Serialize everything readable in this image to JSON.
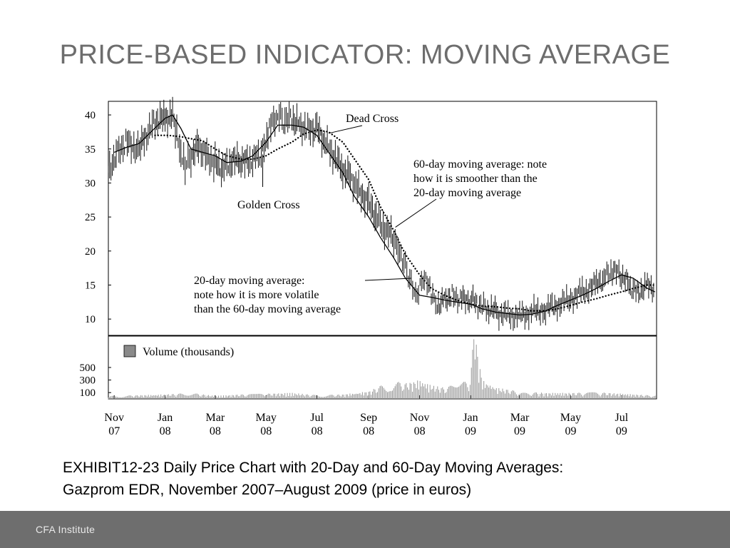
{
  "slide": {
    "title": "PRICE-BASED INDICATOR: MOVING AVERAGE",
    "caption_line1": "EXHIBIT12-23 Daily Price Chart with 20-Day and 60-Day Moving Averages:",
    "caption_line2": "Gazprom EDR, November 2007–August 2009 (price in euros)",
    "footer_brand": "CFA Institute"
  },
  "chart_data": {
    "type": "line",
    "x_ticks": [
      {
        "month": "Nov",
        "year": "07",
        "date": "2007-11"
      },
      {
        "month": "Jan",
        "year": "08",
        "date": "2008-01"
      },
      {
        "month": "Mar",
        "year": "08",
        "date": "2008-03"
      },
      {
        "month": "May",
        "year": "08",
        "date": "2008-05"
      },
      {
        "month": "Jul",
        "year": "08",
        "date": "2008-07"
      },
      {
        "month": "Sep",
        "year": "08",
        "date": "2008-09"
      },
      {
        "month": "Nov",
        "year": "08",
        "date": "2008-11"
      },
      {
        "month": "Jan",
        "year": "09",
        "date": "2009-01"
      },
      {
        "month": "Mar",
        "year": "09",
        "date": "2009-03"
      },
      {
        "month": "May",
        "year": "09",
        "date": "2009-05"
      },
      {
        "month": "Jul",
        "year": "09",
        "date": "2009-07"
      }
    ],
    "price_panel": {
      "yticks": [
        10,
        15,
        20,
        25,
        30,
        35,
        40
      ],
      "ylim": [
        7.5,
        42
      ],
      "series": [
        {
          "name": "Daily price",
          "style": "high-low bars",
          "color": "#000000",
          "x": [
            "2007-10-25",
            "2007-11-05",
            "2007-11-15",
            "2007-12-01",
            "2007-12-10",
            "2007-12-20",
            "2008-01-01",
            "2008-01-10",
            "2008-01-15",
            "2008-01-20",
            "2008-01-25",
            "2008-02-01",
            "2008-02-10",
            "2008-02-20",
            "2008-03-01",
            "2008-03-10",
            "2008-03-20",
            "2008-04-01",
            "2008-04-10",
            "2008-04-20",
            "2008-04-27",
            "2008-05-05",
            "2008-05-15",
            "2008-05-22",
            "2008-06-01",
            "2008-06-10",
            "2008-06-20",
            "2008-07-01",
            "2008-07-10",
            "2008-07-20",
            "2008-08-01",
            "2008-08-10",
            "2008-08-20",
            "2008-09-01",
            "2008-09-10",
            "2008-09-20",
            "2008-10-01",
            "2008-10-08",
            "2008-10-15",
            "2008-10-22",
            "2008-10-29",
            "2008-11-05",
            "2008-11-15",
            "2008-11-22",
            "2008-12-01",
            "2008-12-10",
            "2008-12-20",
            "2009-01-01",
            "2009-01-10",
            "2009-01-20",
            "2009-02-01",
            "2009-02-15",
            "2009-03-01",
            "2009-03-15",
            "2009-04-01",
            "2009-04-15",
            "2009-05-01",
            "2009-05-15",
            "2009-06-01",
            "2009-06-10",
            "2009-06-20",
            "2009-07-01",
            "2009-07-10",
            "2009-07-20",
            "2009-08-01",
            "2009-08-10"
          ],
          "y": [
            32,
            34.5,
            36,
            35,
            37,
            39,
            39.5,
            40,
            37,
            34,
            32.5,
            34,
            35.5,
            34,
            33,
            32,
            33,
            33.5,
            33,
            34,
            34.5,
            38,
            40,
            39,
            39.5,
            38.5,
            38,
            38,
            36,
            34,
            32,
            31,
            29,
            27,
            25,
            23,
            22,
            20,
            18,
            15,
            13,
            16,
            14,
            12,
            13,
            13.5,
            13,
            13,
            12,
            11.5,
            11,
            10.5,
            10.5,
            11,
            11.5,
            12,
            13,
            14,
            15,
            16,
            17,
            16.5,
            15,
            14,
            15,
            14.5
          ]
        },
        {
          "name": "20-day moving average",
          "style": "solid",
          "color": "#000000",
          "x": [
            "2007-11-01",
            "2007-11-15",
            "2007-12-01",
            "2007-12-15",
            "2008-01-01",
            "2008-01-10",
            "2008-01-20",
            "2008-02-01",
            "2008-02-15",
            "2008-03-01",
            "2008-03-15",
            "2008-04-01",
            "2008-04-15",
            "2008-05-01",
            "2008-05-15",
            "2008-06-01",
            "2008-06-15",
            "2008-07-01",
            "2008-07-15",
            "2008-08-01",
            "2008-08-15",
            "2008-09-01",
            "2008-09-15",
            "2008-10-01",
            "2008-10-15",
            "2008-11-01",
            "2008-11-15",
            "2008-12-01",
            "2008-12-15",
            "2009-01-01",
            "2009-01-15",
            "2009-02-01",
            "2009-02-15",
            "2009-03-01",
            "2009-03-15",
            "2009-04-01",
            "2009-04-15",
            "2009-05-01",
            "2009-05-15",
            "2009-06-01",
            "2009-06-15",
            "2009-07-01",
            "2009-07-15",
            "2009-08-01",
            "2009-08-10"
          ],
          "y": [
            34.5,
            35.2,
            35.8,
            37.5,
            39.5,
            40,
            38,
            35,
            34.5,
            34,
            33,
            33.2,
            34,
            36,
            38.5,
            38.5,
            38.2,
            37,
            34.5,
            31.5,
            28,
            25,
            22,
            19,
            16,
            13.5,
            13.2,
            12.8,
            12.5,
            12.2,
            11.5,
            11,
            10.8,
            10.6,
            10.7,
            11.2,
            12,
            12.8,
            13.5,
            14.5,
            15.5,
            16.5,
            16,
            14.5,
            14
          ]
        },
        {
          "name": "60-day moving average",
          "style": "dotted",
          "color": "#000000",
          "x": [
            "2007-12-20",
            "2008-01-05",
            "2008-01-20",
            "2008-02-01",
            "2008-02-15",
            "2008-03-01",
            "2008-03-15",
            "2008-04-01",
            "2008-04-15",
            "2008-05-01",
            "2008-05-15",
            "2008-06-01",
            "2008-06-15",
            "2008-07-01",
            "2008-07-15",
            "2008-08-01",
            "2008-08-15",
            "2008-09-01",
            "2008-09-15",
            "2008-10-01",
            "2008-10-15",
            "2008-11-01",
            "2008-11-15",
            "2008-12-01",
            "2008-12-15",
            "2009-01-01",
            "2009-01-15",
            "2009-02-01",
            "2009-02-15",
            "2009-03-01",
            "2009-03-15",
            "2009-04-01",
            "2009-04-15",
            "2009-05-01",
            "2009-05-15",
            "2009-06-01",
            "2009-06-15",
            "2009-07-01",
            "2009-07-15",
            "2009-08-01",
            "2009-08-10"
          ],
          "y": [
            37,
            37,
            36.8,
            36.5,
            36.2,
            35,
            34,
            33.5,
            33.5,
            34,
            35,
            36,
            37.2,
            37.8,
            37.5,
            36,
            33.5,
            30.5,
            26.5,
            23,
            19.5,
            16.5,
            14.5,
            13.5,
            12.8,
            12.2,
            11.9,
            11.8,
            11.6,
            11.5,
            11.2,
            11.2,
            11.5,
            12,
            12.5,
            13,
            13.5,
            14,
            14.5,
            15,
            15
          ]
        }
      ],
      "annotations": [
        {
          "text": "Dead Cross",
          "date": "2008-07-15",
          "value": 37.3
        },
        {
          "text": "Golden Cross",
          "date": "2008-04-27",
          "value": 34.2
        },
        {
          "lines": [
            "60-day moving average: note",
            "how it is smoother than the",
            "20-day moving average"
          ],
          "date": "2008-10-03",
          "value": 23.5
        },
        {
          "lines": [
            "20-day moving average:",
            "note how it is more volatile",
            "than the 60-day moving average"
          ],
          "date": "2008-10-22",
          "value": 16
        }
      ]
    },
    "volume_panel": {
      "legend": "Volume (thousands)",
      "legend_color": "#8a8a8a",
      "yticks": [
        100,
        300,
        500
      ],
      "ylim": [
        0,
        1000
      ],
      "series": [
        {
          "name": "Volume (thousands)",
          "color": "#9a9a9a",
          "x": [
            "2007-11-01",
            "2007-12-01",
            "2008-01-01",
            "2008-02-01",
            "2008-03-01",
            "2008-04-01",
            "2008-05-01",
            "2008-06-01",
            "2008-07-01",
            "2008-08-01",
            "2008-09-01",
            "2008-09-20",
            "2008-10-01",
            "2008-10-10",
            "2008-10-20",
            "2008-11-01",
            "2008-11-15",
            "2008-12-01",
            "2008-12-15",
            "2009-01-01",
            "2009-01-05",
            "2009-01-15",
            "2009-02-01",
            "2009-03-01",
            "2009-04-01",
            "2009-05-01",
            "2009-06-01",
            "2009-07-01",
            "2009-08-01"
          ],
          "values": [
            40,
            50,
            60,
            80,
            40,
            60,
            70,
            80,
            50,
            60,
            100,
            200,
            280,
            200,
            220,
            250,
            180,
            150,
            200,
            250,
            950,
            250,
            150,
            100,
            80,
            80,
            90,
            70,
            50
          ]
        }
      ]
    }
  }
}
